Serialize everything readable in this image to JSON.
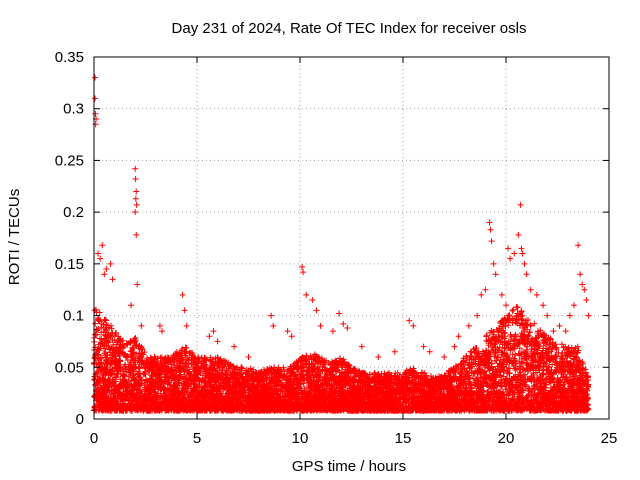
{
  "chart_data": {
    "type": "scatter",
    "title": "Day 231 of 2024, Rate Of TEC Index for receiver osls",
    "xlabel": "GPS time / hours",
    "ylabel": "ROTI / TECUs",
    "xlim": [
      0,
      25
    ],
    "ylim": [
      0,
      0.35
    ],
    "xticks": [
      0,
      5,
      10,
      15,
      20,
      25
    ],
    "yticks": [
      0,
      0.05,
      0.1,
      0.15,
      0.2,
      0.25,
      0.3,
      0.35
    ],
    "xtick_labels": [
      "0",
      "5",
      "10",
      "15",
      "20",
      "25"
    ],
    "ytick_labels": [
      "0",
      "0.05",
      "0.1",
      "0.15",
      "0.2",
      "0.25",
      "0.3",
      "0.35"
    ],
    "grid": true,
    "marker": "+",
    "color": "#ff0000",
    "series": [
      {
        "name": "ROTI",
        "points": [
          [
            0.05,
            0.33
          ],
          [
            0.05,
            0.31
          ],
          [
            0.07,
            0.295
          ],
          [
            0.08,
            0.285
          ],
          [
            0.1,
            0.29
          ],
          [
            0.2,
            0.16
          ],
          [
            0.3,
            0.155
          ],
          [
            0.4,
            0.168
          ],
          [
            0.5,
            0.14
          ],
          [
            0.6,
            0.145
          ],
          [
            0.8,
            0.15
          ],
          [
            0.9,
            0.135
          ],
          [
            2.0,
            0.242
          ],
          [
            2.02,
            0.232
          ],
          [
            2.05,
            0.22
          ],
          [
            2.03,
            0.213
          ],
          [
            2.07,
            0.207
          ],
          [
            2.0,
            0.2
          ],
          [
            2.05,
            0.178
          ],
          [
            2.1,
            0.13
          ],
          [
            1.8,
            0.11
          ],
          [
            2.3,
            0.09
          ],
          [
            3.2,
            0.09
          ],
          [
            3.3,
            0.085
          ],
          [
            4.3,
            0.12
          ],
          [
            4.4,
            0.105
          ],
          [
            4.5,
            0.09
          ],
          [
            5.6,
            0.08
          ],
          [
            5.8,
            0.085
          ],
          [
            6.0,
            0.075
          ],
          [
            6.8,
            0.07
          ],
          [
            7.5,
            0.06
          ],
          [
            8.6,
            0.1
          ],
          [
            8.7,
            0.09
          ],
          [
            9.4,
            0.085
          ],
          [
            9.6,
            0.08
          ],
          [
            10.1,
            0.147
          ],
          [
            10.15,
            0.142
          ],
          [
            10.3,
            0.12
          ],
          [
            10.6,
            0.115
          ],
          [
            10.8,
            0.105
          ],
          [
            11.0,
            0.09
          ],
          [
            11.6,
            0.085
          ],
          [
            11.9,
            0.102
          ],
          [
            12.1,
            0.092
          ],
          [
            12.3,
            0.088
          ],
          [
            13.0,
            0.07
          ],
          [
            13.8,
            0.06
          ],
          [
            14.6,
            0.065
          ],
          [
            15.3,
            0.095
          ],
          [
            15.5,
            0.09
          ],
          [
            16.0,
            0.07
          ],
          [
            16.3,
            0.065
          ],
          [
            17.0,
            0.06
          ],
          [
            17.5,
            0.07
          ],
          [
            17.7,
            0.08
          ],
          [
            18.2,
            0.09
          ],
          [
            18.6,
            0.1
          ],
          [
            18.8,
            0.12
          ],
          [
            19.0,
            0.125
          ],
          [
            19.2,
            0.19
          ],
          [
            19.25,
            0.183
          ],
          [
            19.3,
            0.172
          ],
          [
            19.4,
            0.15
          ],
          [
            19.5,
            0.14
          ],
          [
            19.8,
            0.12
          ],
          [
            20.0,
            0.11
          ],
          [
            20.1,
            0.165
          ],
          [
            20.2,
            0.155
          ],
          [
            20.4,
            0.16
          ],
          [
            20.6,
            0.178
          ],
          [
            20.7,
            0.207
          ],
          [
            20.75,
            0.165
          ],
          [
            20.8,
            0.16
          ],
          [
            20.9,
            0.15
          ],
          [
            21.0,
            0.14
          ],
          [
            21.2,
            0.125
          ],
          [
            21.5,
            0.12
          ],
          [
            21.8,
            0.11
          ],
          [
            22.0,
            0.1
          ],
          [
            22.3,
            0.085
          ],
          [
            22.6,
            0.09
          ],
          [
            22.9,
            0.085
          ],
          [
            23.1,
            0.1
          ],
          [
            23.3,
            0.11
          ],
          [
            23.5,
            0.168
          ],
          [
            23.6,
            0.14
          ],
          [
            23.7,
            0.13
          ],
          [
            23.8,
            0.125
          ],
          [
            23.9,
            0.115
          ],
          [
            24.0,
            0.1
          ]
        ]
      }
    ],
    "envelope": {
      "description": "dense ROTI scatter; upper envelope of the bulk of points by hour",
      "x": [
        0,
        0.5,
        1,
        1.5,
        2,
        2.5,
        3,
        3.5,
        4,
        4.5,
        5,
        5.5,
        6,
        6.5,
        7,
        7.5,
        8,
        8.5,
        9,
        9.5,
        10,
        10.5,
        11,
        11.5,
        12,
        12.5,
        13,
        13.5,
        14,
        14.5,
        15,
        15.5,
        16,
        16.5,
        17,
        17.5,
        18,
        18.5,
        19,
        19.5,
        20,
        20.5,
        21,
        21.5,
        22,
        22.5,
        23,
        23.5,
        24
      ],
      "y": [
        0.11,
        0.1,
        0.085,
        0.075,
        0.08,
        0.065,
        0.06,
        0.06,
        0.065,
        0.07,
        0.06,
        0.06,
        0.06,
        0.055,
        0.05,
        0.05,
        0.045,
        0.05,
        0.05,
        0.05,
        0.06,
        0.065,
        0.06,
        0.055,
        0.06,
        0.05,
        0.045,
        0.045,
        0.045,
        0.045,
        0.045,
        0.05,
        0.045,
        0.04,
        0.045,
        0.05,
        0.06,
        0.07,
        0.08,
        0.09,
        0.1,
        0.11,
        0.1,
        0.09,
        0.08,
        0.075,
        0.07,
        0.07,
        0.04
      ]
    },
    "baseline": 0.008,
    "n_points": 9000,
    "x_range_data": [
      0,
      24
    ]
  }
}
